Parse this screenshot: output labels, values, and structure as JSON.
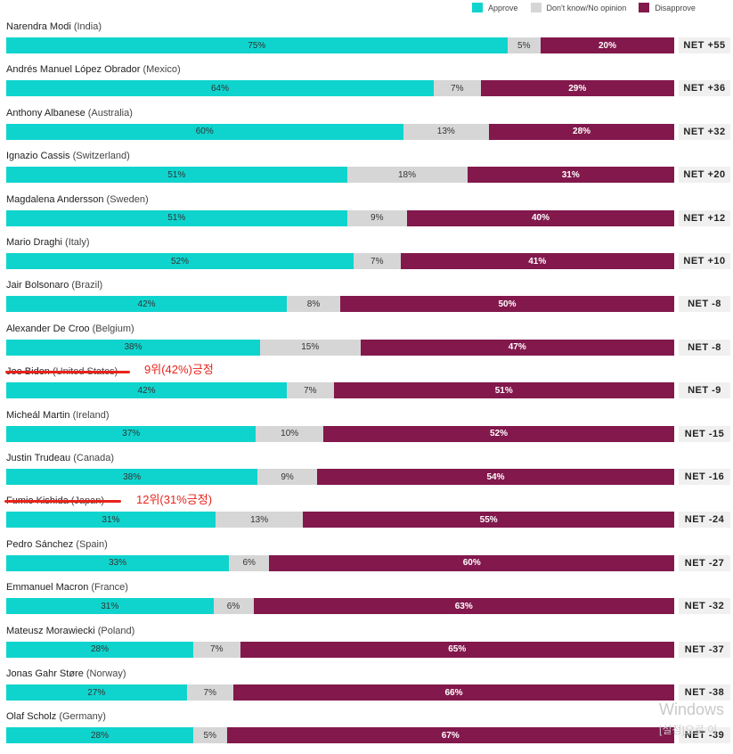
{
  "legend": {
    "approve": "Approve",
    "neutral": "Don't know/No opinion",
    "disapprove": "Disapprove"
  },
  "colors": {
    "approve": "#0fd4cd",
    "neutral": "#d6d6d6",
    "disapprove": "#82184c",
    "annotation": "#e8231b"
  },
  "chart_data": {
    "type": "bar",
    "orientation": "horizontal-stacked",
    "categories": [
      "Narendra Modi (India)",
      "Andrés Manuel López Obrador (Mexico)",
      "Anthony Albanese (Australia)",
      "Ignazio Cassis (Switzerland)",
      "Magdalena Andersson (Sweden)",
      "Mario Draghi (Italy)",
      "Jair Bolsonaro (Brazil)",
      "Alexander De Croo (Belgium)",
      "Joe Biden (United States)",
      "Micheál Martin (Ireland)",
      "Justin Trudeau (Canada)",
      "Fumio Kishida (Japan)",
      "Pedro Sánchez (Spain)",
      "Emmanuel Macron (France)",
      "Mateusz Morawiecki (Poland)",
      "Jonas Gahr Støre (Norway)",
      "Olaf Scholz (Germany)"
    ],
    "leaders": [
      {
        "name": "Narendra Modi",
        "country": "(India)",
        "approve": 75,
        "neutral": 5,
        "disapprove": 20,
        "net": "NET +55"
      },
      {
        "name": "Andrés Manuel López Obrador",
        "country": "(Mexico)",
        "approve": 64,
        "neutral": 7,
        "disapprove": 29,
        "net": "NET +36"
      },
      {
        "name": "Anthony Albanese",
        "country": "(Australia)",
        "approve": 60,
        "neutral": 13,
        "disapprove": 28,
        "net": "NET +32"
      },
      {
        "name": "Ignazio Cassis",
        "country": "(Switzerland)",
        "approve": 51,
        "neutral": 18,
        "disapprove": 31,
        "net": "NET +20"
      },
      {
        "name": "Magdalena Andersson",
        "country": "(Sweden)",
        "approve": 51,
        "neutral": 9,
        "disapprove": 40,
        "net": "NET +12"
      },
      {
        "name": "Mario Draghi",
        "country": "(Italy)",
        "approve": 52,
        "neutral": 7,
        "disapprove": 41,
        "net": "NET +10"
      },
      {
        "name": "Jair Bolsonaro",
        "country": "(Brazil)",
        "approve": 42,
        "neutral": 8,
        "disapprove": 50,
        "net": "NET -8"
      },
      {
        "name": "Alexander De Croo",
        "country": "(Belgium)",
        "approve": 38,
        "neutral": 15,
        "disapprove": 47,
        "net": "NET -8"
      },
      {
        "name": "Joe Biden",
        "country": "(United States)",
        "approve": 42,
        "neutral": 7,
        "disapprove": 51,
        "net": "NET -9"
      },
      {
        "name": "Micheál Martin",
        "country": "(Ireland)",
        "approve": 37,
        "neutral": 10,
        "disapprove": 52,
        "net": "NET -15"
      },
      {
        "name": "Justin Trudeau",
        "country": "(Canada)",
        "approve": 38,
        "neutral": 9,
        "disapprove": 54,
        "net": "NET -16"
      },
      {
        "name": "Fumio Kishida",
        "country": "(Japan)",
        "approve": 31,
        "neutral": 13,
        "disapprove": 55,
        "net": "NET -24"
      },
      {
        "name": "Pedro Sánchez",
        "country": "(Spain)",
        "approve": 33,
        "neutral": 6,
        "disapprove": 60,
        "net": "NET -27"
      },
      {
        "name": "Emmanuel Macron",
        "country": "(France)",
        "approve": 31,
        "neutral": 6,
        "disapprove": 63,
        "net": "NET -32"
      },
      {
        "name": "Mateusz Morawiecki",
        "country": "(Poland)",
        "approve": 28,
        "neutral": 7,
        "disapprove": 65,
        "net": "NET -37"
      },
      {
        "name": "Jonas Gahr Støre",
        "country": "(Norway)",
        "approve": 27,
        "neutral": 7,
        "disapprove": 66,
        "net": "NET -38"
      },
      {
        "name": "Olaf Scholz",
        "country": "(Germany)",
        "approve": 28,
        "neutral": 5,
        "disapprove": 67,
        "net": "NET -39"
      }
    ],
    "annotations": [
      {
        "leader_index": 8,
        "text": "9위(42%)긍정"
      },
      {
        "leader_index": 11,
        "text": "12위(31%긍정)"
      }
    ],
    "legend_position": "top-right"
  },
  "watermark": {
    "line1": "Windows",
    "line2": "[설정]으로 이"
  }
}
